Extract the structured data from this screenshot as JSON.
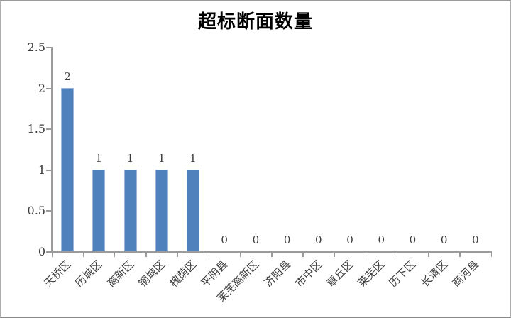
{
  "title": "超标断面数量",
  "chart_data": {
    "type": "bar",
    "title": "超标断面数量",
    "categories": [
      "天桥区",
      "历城区",
      "高新区",
      "钢城区",
      "槐荫区",
      "平阴县",
      "莱芜高新区",
      "济阳县",
      "市中区",
      "章丘区",
      "莱芜区",
      "历下区",
      "长清区",
      "商河县"
    ],
    "values": [
      2,
      1,
      1,
      1,
      1,
      0,
      0,
      0,
      0,
      0,
      0,
      0,
      0,
      0
    ],
    "data_labels": [
      "2",
      "1",
      "1",
      "1",
      "1",
      "0",
      "0",
      "0",
      "0",
      "0",
      "0",
      "0",
      "0",
      "0"
    ],
    "xlabel": "",
    "ylabel": "",
    "ylim": [
      0,
      2.5
    ],
    "yticks": [
      0,
      0.5,
      1,
      1.5,
      2,
      2.5
    ],
    "ytick_labels": [
      "0",
      "0.5",
      "1",
      "1.5",
      "2",
      "2.5"
    ],
    "grid": false,
    "legend": false,
    "colors": {
      "bar_fill": "#4f81bd",
      "bar_border": "#9ab5d9",
      "axis": "#9b9b9b",
      "text": "#3b3b3b",
      "title_text": "#000000",
      "background": "#ffffff"
    }
  }
}
